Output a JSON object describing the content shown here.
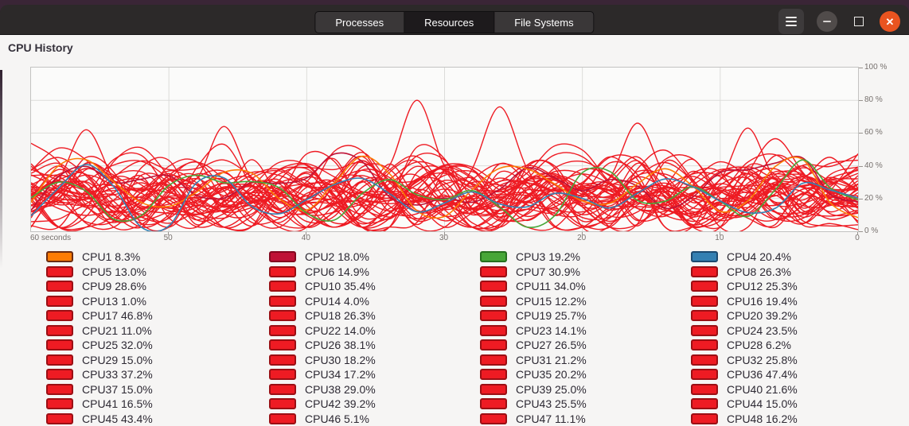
{
  "window": {
    "tabs": [
      {
        "label": "Processes",
        "active": false
      },
      {
        "label": "Resources",
        "active": true
      },
      {
        "label": "File Systems",
        "active": false
      }
    ],
    "controls": {
      "menu": "hamburger-icon",
      "minimize": "minimize-icon",
      "maximize": "maximize-icon",
      "close": "close-icon"
    }
  },
  "section_title": "CPU History",
  "colors": {
    "close_button": "#e95420",
    "default_line": "#ee1b23",
    "default_swatch_border": "#9b0f14",
    "chart_background": "#fbfbfa",
    "grid_line": "#dcdcda"
  },
  "chart_data": {
    "type": "line",
    "title": "CPU History",
    "x_axis": {
      "ticks": [
        "60 seconds",
        "50",
        "40",
        "30",
        "20",
        "10",
        "0"
      ],
      "range_seconds": [
        60,
        0
      ]
    },
    "y_axis": {
      "ticks": [
        "100 %",
        "80 %",
        "60 %",
        "40 %",
        "20 %",
        "0 %"
      ],
      "ylim": [
        0,
        100
      ]
    },
    "grid": true,
    "legend_position": "bottom",
    "series": [
      {
        "name": "CPU1",
        "percent": 8.3,
        "color": "#fd7c04",
        "border": "#6b2b10"
      },
      {
        "name": "CPU2",
        "percent": 18.0,
        "color": "#bf1236",
        "border": "#84081f"
      },
      {
        "name": "CPU3",
        "percent": 19.2,
        "color": "#47a638",
        "border": "#256f1e"
      },
      {
        "name": "CPU4",
        "percent": 20.4,
        "color": "#3480b2",
        "border": "#1c4a70"
      },
      {
        "name": "CPU5",
        "percent": 13.0
      },
      {
        "name": "CPU6",
        "percent": 14.9
      },
      {
        "name": "CPU7",
        "percent": 30.9
      },
      {
        "name": "CPU8",
        "percent": 26.3
      },
      {
        "name": "CPU9",
        "percent": 28.6
      },
      {
        "name": "CPU10",
        "percent": 35.4
      },
      {
        "name": "CPU11",
        "percent": 34.0
      },
      {
        "name": "CPU12",
        "percent": 25.3
      },
      {
        "name": "CPU13",
        "percent": 1.0
      },
      {
        "name": "CPU14",
        "percent": 4.0
      },
      {
        "name": "CPU15",
        "percent": 12.2
      },
      {
        "name": "CPU16",
        "percent": 19.4
      },
      {
        "name": "CPU17",
        "percent": 46.8
      },
      {
        "name": "CPU18",
        "percent": 26.3
      },
      {
        "name": "CPU19",
        "percent": 25.7
      },
      {
        "name": "CPU20",
        "percent": 39.2
      },
      {
        "name": "CPU21",
        "percent": 11.0
      },
      {
        "name": "CPU22",
        "percent": 14.0
      },
      {
        "name": "CPU23",
        "percent": 14.1
      },
      {
        "name": "CPU24",
        "percent": 23.5
      },
      {
        "name": "CPU25",
        "percent": 32.0
      },
      {
        "name": "CPU26",
        "percent": 38.1
      },
      {
        "name": "CPU27",
        "percent": 26.5
      },
      {
        "name": "CPU28",
        "percent": 6.2
      },
      {
        "name": "CPU29",
        "percent": 15.0
      },
      {
        "name": "CPU30",
        "percent": 18.2
      },
      {
        "name": "CPU31",
        "percent": 21.2
      },
      {
        "name": "CPU32",
        "percent": 25.8
      },
      {
        "name": "CPU33",
        "percent": 37.2
      },
      {
        "name": "CPU34",
        "percent": 17.2
      },
      {
        "name": "CPU35",
        "percent": 20.2
      },
      {
        "name": "CPU36",
        "percent": 47.4
      },
      {
        "name": "CPU37",
        "percent": 15.0
      },
      {
        "name": "CPU38",
        "percent": 29.0
      },
      {
        "name": "CPU39",
        "percent": 25.0
      },
      {
        "name": "CPU40",
        "percent": 21.6
      },
      {
        "name": "CPU41",
        "percent": 16.5
      },
      {
        "name": "CPU42",
        "percent": 39.2
      },
      {
        "name": "CPU43",
        "percent": 25.5
      },
      {
        "name": "CPU44",
        "percent": 15.0
      },
      {
        "name": "CPU45",
        "percent": 43.4
      },
      {
        "name": "CPU46",
        "percent": 5.1
      },
      {
        "name": "CPU47",
        "percent": 11.1
      },
      {
        "name": "CPU48",
        "percent": 16.2
      }
    ]
  }
}
